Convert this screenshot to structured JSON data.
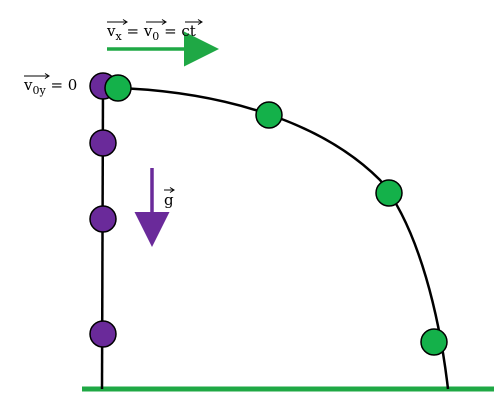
{
  "labels": {
    "velocity_x": {
      "v": "v",
      "sub": "x",
      "eq1": " = ",
      "v0": "v",
      "sub0": "0",
      "eq2": " = ",
      "ct": "ct"
    },
    "initial_vertical": {
      "v": "v",
      "sub": "0y",
      "eq": " = 0"
    },
    "gravity": {
      "g": "g"
    }
  },
  "colors": {
    "horizontal_velocity": "#1fa845",
    "gravity": "#6a2a9a",
    "purple_ball": "#6a2a9a",
    "green_ball": "#14b14a",
    "ground": "#1fa845",
    "path": "#000000"
  }
}
